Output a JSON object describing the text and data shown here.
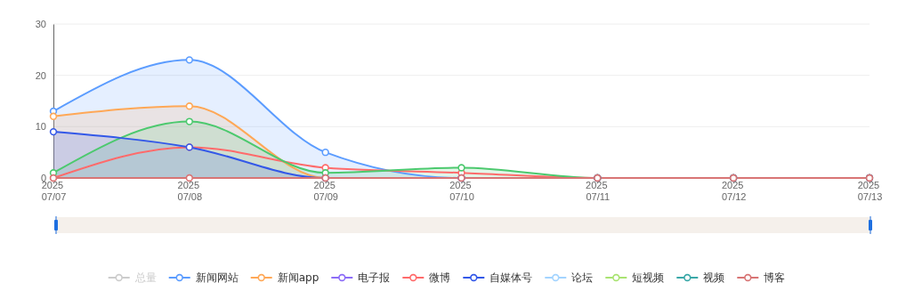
{
  "chart_data": {
    "type": "line",
    "categories": [
      "2025 07/07",
      "2025 07/08",
      "2025 07/09",
      "2025 07/10",
      "2025 07/11",
      "2025 07/12",
      "2025 07/13"
    ],
    "ylim": [
      0,
      30
    ],
    "yticks": [
      0,
      10,
      20,
      30
    ],
    "grid": "y",
    "legend": "bottom",
    "marker": "circle",
    "line_style": "solid",
    "series": [
      {
        "name": "总量",
        "color": "#cccccc",
        "values": [
          null,
          null,
          null,
          null,
          null,
          null,
          null
        ]
      },
      {
        "name": "新闻网站",
        "type": "area",
        "color": "#5b9cff",
        "values": [
          13,
          23,
          5,
          0,
          0,
          0,
          0
        ]
      },
      {
        "name": "新闻app",
        "type": "area",
        "color": "#ffa857",
        "values": [
          12,
          14,
          0,
          0,
          0,
          0,
          0
        ]
      },
      {
        "name": "电子报",
        "color": "#8c6cf7",
        "values": [
          null,
          null,
          null,
          null,
          null,
          null,
          null
        ]
      },
      {
        "name": "微博",
        "color": "#ff6b6b",
        "values": [
          0,
          6,
          2,
          1,
          0,
          0,
          0
        ]
      },
      {
        "type": "area",
        "color": "#4cc96e",
        "values": [
          1,
          11,
          1,
          2,
          0,
          0,
          0
        ]
      },
      {
        "name": "自媒体号",
        "type": "area",
        "color": "#3358e8",
        "values": [
          9,
          6,
          0,
          0,
          0,
          0,
          0
        ]
      },
      {
        "name": "论坛",
        "color": "#a3d4ff",
        "values": [
          null,
          null,
          null,
          null,
          null,
          null,
          null
        ]
      },
      {
        "name": "短视频",
        "color": "#a9e372",
        "values": [
          null,
          null,
          null,
          null,
          null,
          null,
          null
        ]
      },
      {
        "name": "视频",
        "color": "#3aa8a8",
        "values": [
          null,
          null,
          null,
          null,
          null,
          null,
          null
        ]
      },
      {
        "name": "博客",
        "color": "#d87575",
        "values": [
          0,
          0,
          0,
          0,
          0,
          0,
          0
        ]
      }
    ]
  }
}
